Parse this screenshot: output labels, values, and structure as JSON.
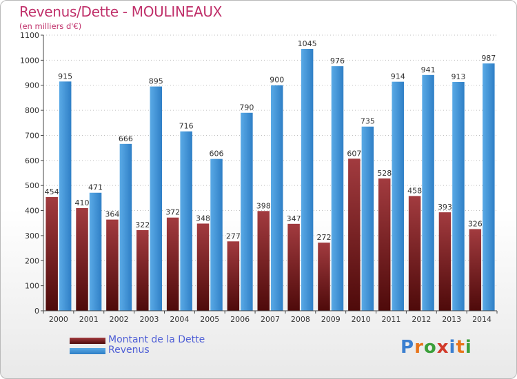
{
  "colors": {
    "title": "#c0306a",
    "debt_top": "#a23b3f",
    "debt_bottom": "#4e0a0a",
    "revenue_top": "#5aaae6",
    "revenue_bottom": "#2f7fc6",
    "legend_text": "#4f5fd6",
    "axis": "#444444",
    "grid": "#bfbfbf"
  },
  "header": {
    "title": "Revenus/Dette - MOULINEAUX",
    "subtitle": "(en milliers d'€)"
  },
  "logo": {
    "text": "Proxiti",
    "letters": [
      "P",
      "r",
      "o",
      "x",
      "i",
      "t",
      "i"
    ],
    "letter_colors": [
      "#3b7fd0",
      "#e8741a",
      "#3b9f3a",
      "#d23a2a",
      "#3b7fd0",
      "#e8741a",
      "#3b9f3a"
    ]
  },
  "chart_data": {
    "type": "bar",
    "title": "Revenus/Dette - MOULINEAUX",
    "subtitle": "(en milliers d'€)",
    "categories": [
      "2000",
      "2001",
      "2002",
      "2003",
      "2004",
      "2005",
      "2006",
      "2007",
      "2008",
      "2009",
      "2010",
      "2011",
      "2012",
      "2013",
      "2014"
    ],
    "series": [
      {
        "name": "Montant de la Dette",
        "values": [
          454,
          410,
          364,
          322,
          372,
          348,
          277,
          398,
          347,
          272,
          607,
          528,
          458,
          393,
          326
        ],
        "labels": [
          "454",
          "410",
          "364",
          "322",
          "372",
          "348",
          "277",
          "398",
          "347",
          "272",
          "607",
          "528",
          "458",
          "393",
          "326"
        ]
      },
      {
        "name": "Revenus",
        "values": [
          915,
          471,
          666,
          895,
          716,
          606,
          790,
          900,
          1045,
          976,
          735,
          914,
          941,
          913,
          987
        ],
        "labels": [
          "915",
          "471",
          "666",
          "895",
          "716",
          "606",
          "790",
          "900",
          "1045",
          "976",
          "735",
          "914",
          "941",
          "913",
          "987"
        ]
      }
    ],
    "ylim": [
      0,
      1100
    ],
    "yticks": [
      "0",
      "100",
      "200",
      "300",
      "400",
      "500",
      "600",
      "700",
      "800",
      "900",
      "1000",
      "1100"
    ],
    "grid": true,
    "legend_position": "bottom-left"
  }
}
